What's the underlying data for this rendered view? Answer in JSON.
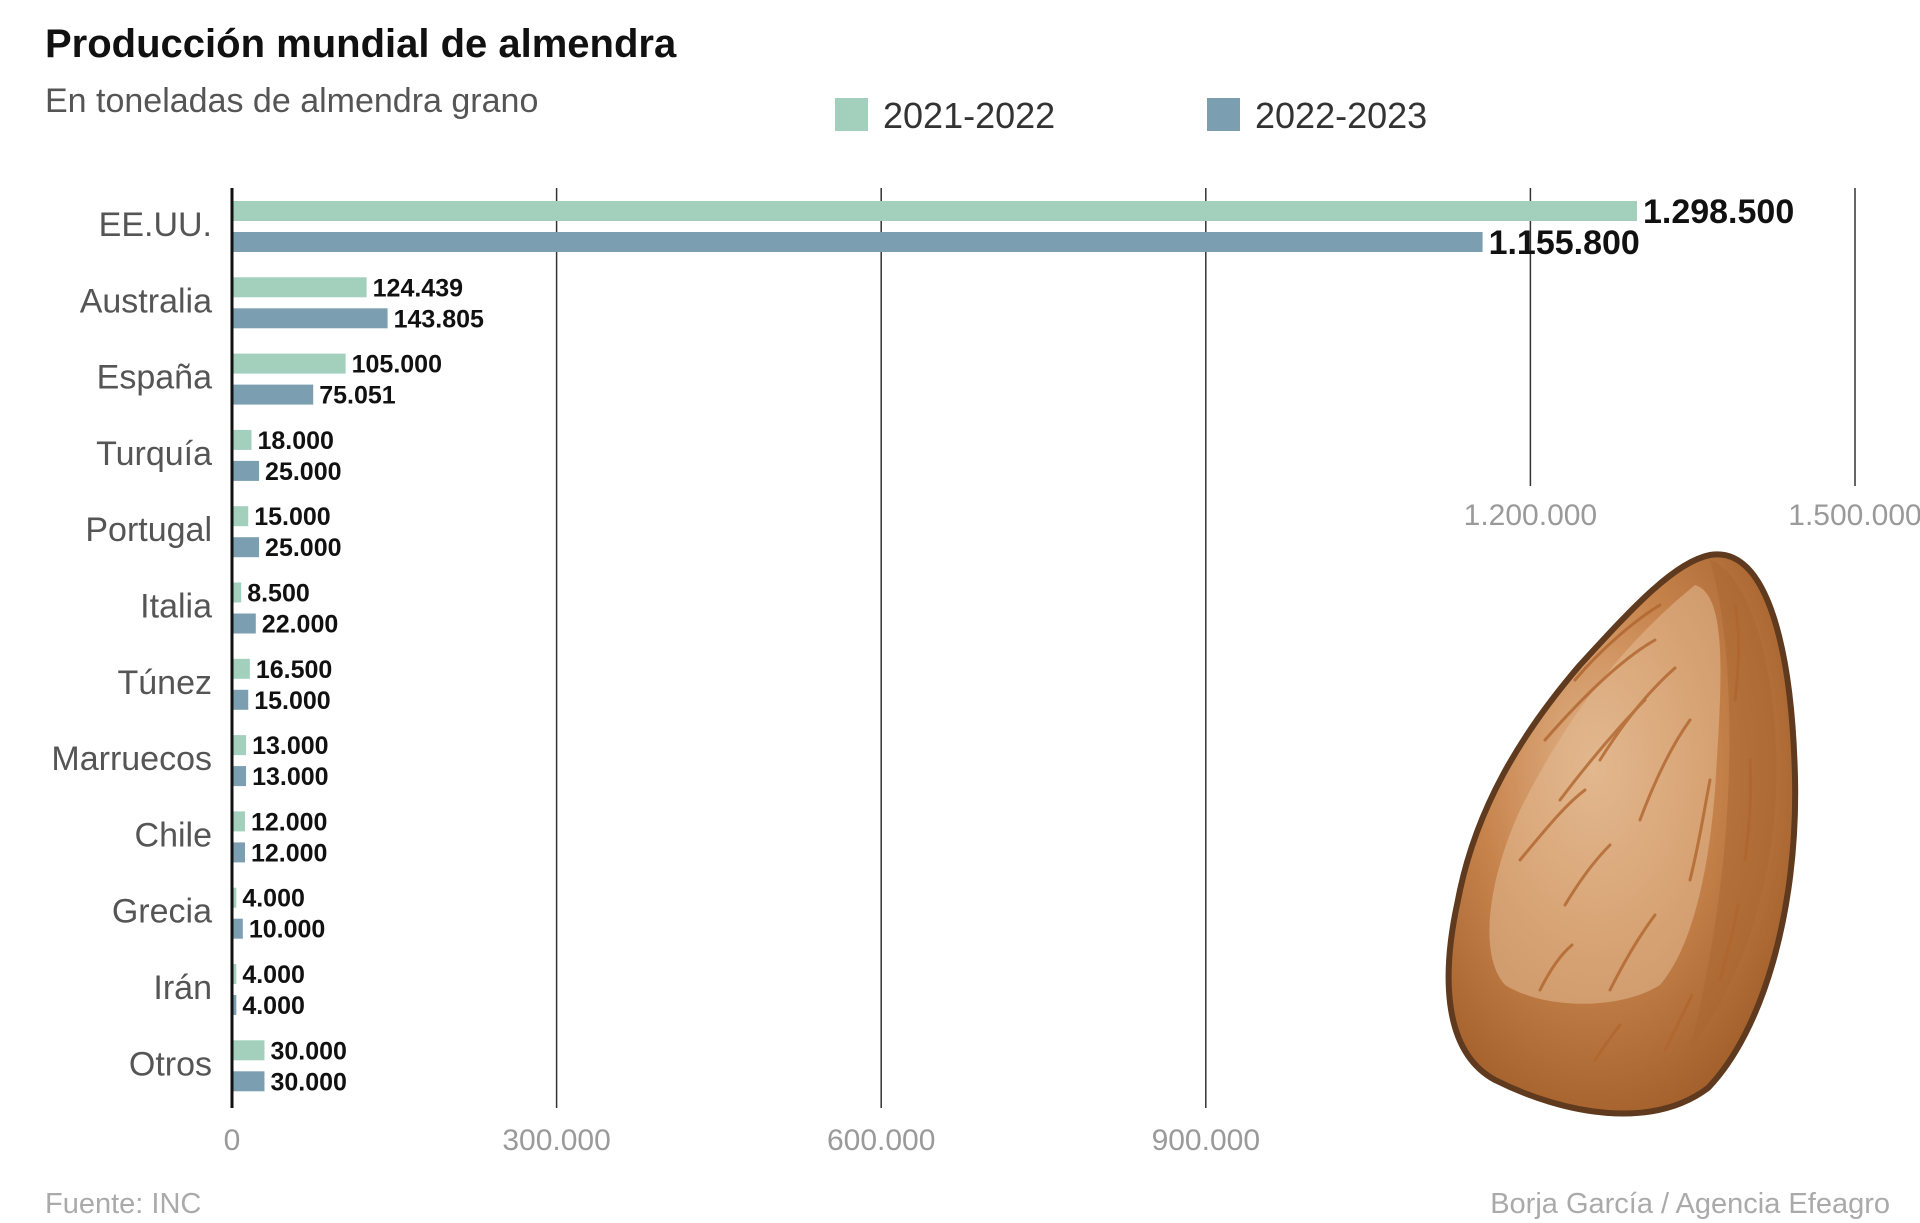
{
  "header": {
    "title": "Producción mundial de almendra",
    "subtitle": "En toneladas de almendra grano"
  },
  "footer": {
    "source": "Fuente: INC",
    "credit": "Borja García / Agencia Efeagro"
  },
  "colors": {
    "series_2021_2022": "#a3d0bd",
    "series_2022_2023": "#7b9fb1",
    "gridline": "#333333",
    "axis": "#111111"
  },
  "illustration": {
    "icon": "almond-icon"
  },
  "chart_data": {
    "type": "bar",
    "orientation": "horizontal",
    "title": "Producción mundial de almendra",
    "subtitle": "En toneladas de almendra grano",
    "categories": [
      "EE.UU.",
      "Australia",
      "España",
      "Turquía",
      "Portugal",
      "Italia",
      "Túnez",
      "Marruecos",
      "Chile",
      "Grecia",
      "Irán",
      "Otros"
    ],
    "series": [
      {
        "name": "2021-2022",
        "color": "#a3d0bd",
        "values": [
          1298500,
          124439,
          105000,
          18000,
          15000,
          8500,
          16500,
          13000,
          12000,
          4000,
          4000,
          30000
        ],
        "labels": [
          "1.298.500",
          "124.439",
          "105.000",
          "18.000",
          "15.000",
          "8.500",
          "16.500",
          "13.000",
          "12.000",
          "4.000",
          "4.000",
          "30.000"
        ]
      },
      {
        "name": "2022-2023",
        "color": "#7b9fb1",
        "values": [
          1155800,
          143805,
          75051,
          25000,
          25000,
          22000,
          15000,
          13000,
          12000,
          10000,
          4000,
          30000
        ],
        "labels": [
          "1.155.800",
          "143.805",
          "75.051",
          "25.000",
          "25.000",
          "22.000",
          "15.000",
          "13.000",
          "12.000",
          "10.000",
          "4.000",
          "30.000"
        ]
      }
    ],
    "xlim": [
      0,
      1500000
    ],
    "ticks": [
      {
        "value": 0,
        "label": "0"
      },
      {
        "value": 300000,
        "label": "300.000"
      },
      {
        "value": 600000,
        "label": "600.000"
      },
      {
        "value": 900000,
        "label": "900.000"
      },
      {
        "value": 1200000,
        "label": "1.200.000"
      },
      {
        "value": 1500000,
        "label": "1.500.000"
      }
    ],
    "grid": true,
    "legend_position": "top-center"
  }
}
